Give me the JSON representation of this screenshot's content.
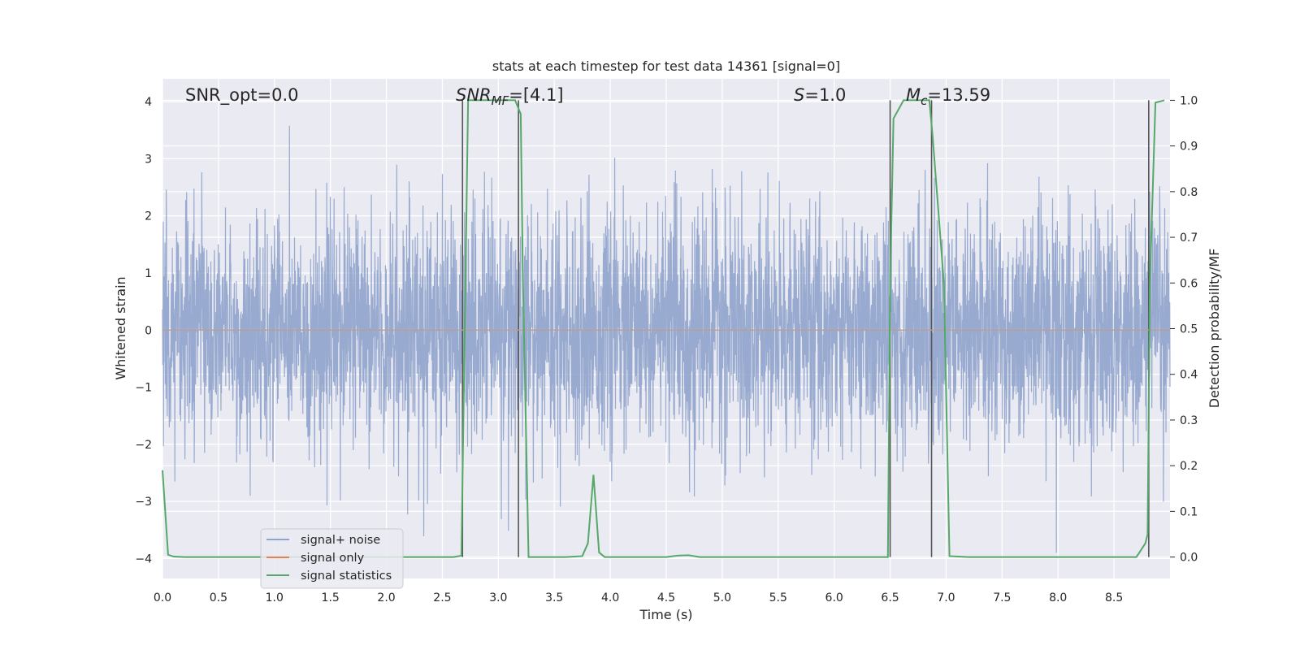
{
  "chart_data": {
    "type": "line",
    "title": "stats at each timestep for test data 14361 [signal=0]",
    "xlabel": "Time (s)",
    "ylabel_left": "Whitened strain",
    "ylabel_right": "Detection probability/MF",
    "xlim": [
      0.0,
      9.0
    ],
    "ylim_left": [
      -4.35,
      4.4
    ],
    "ylim_right": [
      -0.047,
      1.047
    ],
    "x_ticks": [
      "0.0",
      "0.5",
      "1.0",
      "1.5",
      "2.0",
      "2.5",
      "3.0",
      "3.5",
      "4.0",
      "4.5",
      "5.0",
      "5.5",
      "6.0",
      "6.5",
      "7.0",
      "7.5",
      "8.0",
      "8.5"
    ],
    "y_ticks_left": [
      "4",
      "3",
      "2",
      "1",
      "0",
      "−1",
      "−2",
      "−3",
      "−4"
    ],
    "y_ticks_right": [
      "1.0",
      "0.9",
      "0.8",
      "0.7",
      "0.6",
      "0.5",
      "0.4",
      "0.3",
      "0.2",
      "0.1",
      "0.0"
    ],
    "grid": true,
    "legend_position": "lower-left",
    "annotations": {
      "snr_opt": "SNR_opt=0.0",
      "snr_mf_sym": "SNR",
      "snr_mf_sub": "MF",
      "snr_mf_val": "=[4.1]",
      "s_sym": "S",
      "s_val": "=1.0",
      "mc_sym": "M",
      "mc_sub": "c",
      "mc_val": "=13.59"
    },
    "vlines": [
      2.68,
      3.18,
      6.5,
      6.87,
      8.81
    ],
    "series": [
      {
        "name": "signal+ noise",
        "color": "#8fa3cb",
        "noise_sigma": 1.0,
        "y_range": [
          -3.9,
          3.9
        ]
      },
      {
        "name": "signal only",
        "color": "#dd8452",
        "values_constant": 0.0
      },
      {
        "name": "signal statistics",
        "color": "#55a868",
        "x": [
          0.0,
          0.05,
          0.1,
          0.2,
          2.6,
          2.67,
          2.73,
          3.15,
          3.2,
          3.22,
          3.27,
          3.6,
          3.75,
          3.8,
          3.85,
          3.9,
          3.95,
          4.0,
          4.5,
          4.6,
          4.7,
          4.8,
          5.0,
          6.48,
          6.5,
          6.53,
          6.62,
          6.85,
          6.88,
          6.98,
          7.03,
          7.2,
          8.7,
          8.78,
          8.8,
          8.82,
          8.87,
          8.95
        ],
        "values": [
          0.19,
          0.005,
          0.001,
          0.0,
          0.0,
          0.003,
          1.0,
          1.0,
          0.97,
          0.6,
          0.0,
          0.0,
          0.002,
          0.03,
          0.18,
          0.01,
          0.0,
          0.0,
          0.0,
          0.003,
          0.004,
          0.0,
          0.0,
          0.0,
          0.6,
          0.96,
          1.0,
          1.0,
          0.92,
          0.6,
          0.002,
          0.0,
          0.0,
          0.03,
          0.05,
          0.6,
          0.995,
          1.0
        ]
      }
    ]
  }
}
